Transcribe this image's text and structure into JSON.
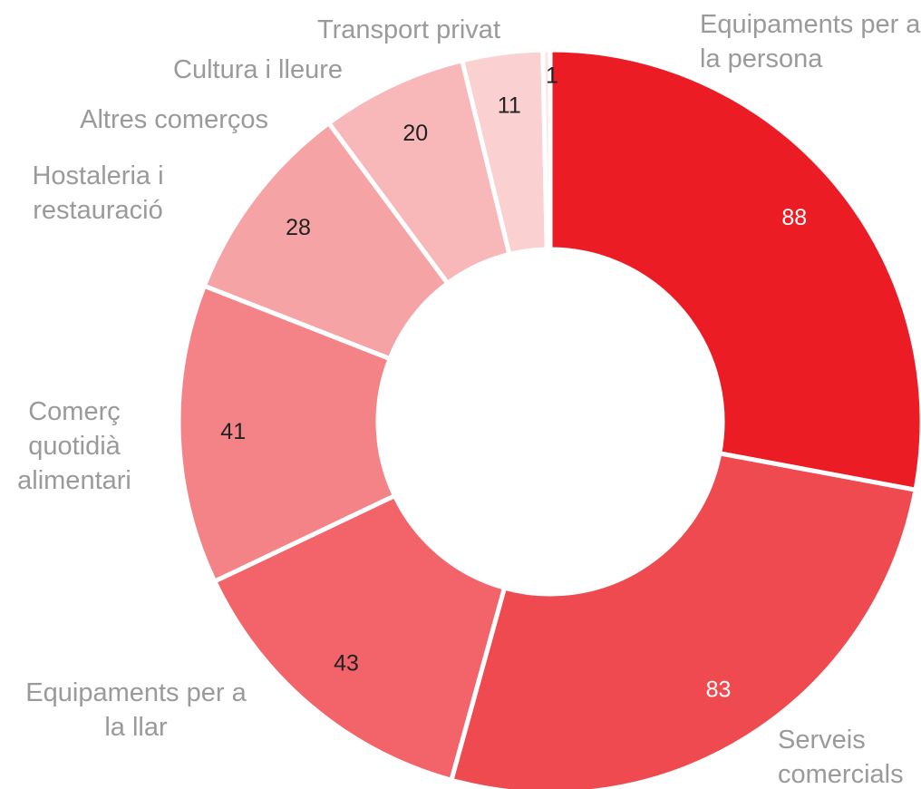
{
  "chart_data": {
    "type": "donut",
    "categories": [
      "Equipaments per a la persona",
      "Serveis comercials",
      "Equipaments per a la llar",
      "Comerç quotidià alimentari",
      "Hostaleria i restauració",
      "Altres comerços",
      "Cultura i lleure",
      "Transport privat"
    ],
    "values": [
      88,
      83,
      43,
      41,
      28,
      20,
      11,
      1
    ],
    "colors": [
      "#ec1c24",
      "#ef4a50",
      "#f2636a",
      "#f48388",
      "#f6a3a6",
      "#f8b8ba",
      "#fad0d1",
      "#fde5e6"
    ],
    "value_label_colors": [
      "#ffffff",
      "#ffffff",
      "#222222",
      "#222222",
      "#222222",
      "#222222",
      "#222222",
      "#222222"
    ]
  }
}
